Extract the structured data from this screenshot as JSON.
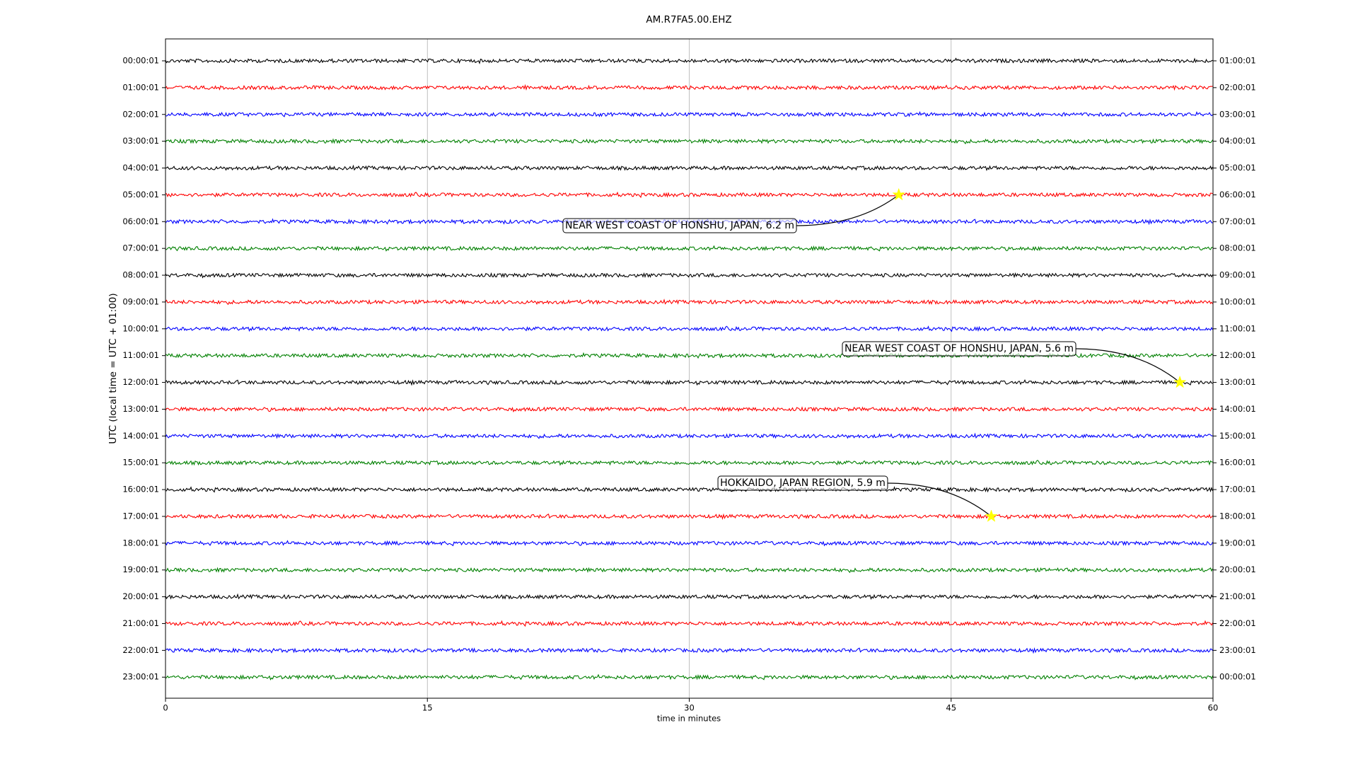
{
  "chart_data": {
    "type": "dayplot",
    "title": "AM.R7FA5.00.EHZ",
    "x_label": "time in minutes",
    "y_label": "UTC (local time = UTC + 01:00)",
    "xlim": [
      0,
      60
    ],
    "xticks": [
      0,
      15,
      30,
      45,
      60
    ],
    "grid": true,
    "rows": [
      {
        "label": "00:00:01",
        "right_label": "01:00:01",
        "color": "#000000"
      },
      {
        "label": "01:00:01",
        "right_label": "02:00:01",
        "color": "#ff0000"
      },
      {
        "label": "02:00:01",
        "right_label": "03:00:01",
        "color": "#0000ff"
      },
      {
        "label": "03:00:01",
        "right_label": "04:00:01",
        "color": "#008000"
      },
      {
        "label": "04:00:01",
        "right_label": "05:00:01",
        "color": "#000000"
      },
      {
        "label": "05:00:01",
        "right_label": "06:00:01",
        "color": "#ff0000",
        "events": [
          {
            "label": "NEAR WEST COAST OF HONSHU, JAPAN, 6.2 m",
            "x": 42
          }
        ]
      },
      {
        "label": "06:00:01",
        "right_label": "07:00:01",
        "color": "#0000ff"
      },
      {
        "label": "07:00:01",
        "right_label": "08:00:01",
        "color": "#008000"
      },
      {
        "label": "08:00:01",
        "right_label": "09:00:01",
        "color": "#000000"
      },
      {
        "label": "09:00:01",
        "right_label": "10:00:01",
        "color": "#ff0000"
      },
      {
        "label": "10:00:01",
        "right_label": "11:00:01",
        "color": "#0000ff"
      },
      {
        "label": "11:00:01",
        "right_label": "12:00:01",
        "color": "#008000"
      },
      {
        "label": "12:00:01",
        "right_label": "13:00:01",
        "color": "#000000",
        "events": [
          {
            "label": "NEAR WEST COAST OF HONSHU, JAPAN, 5.6 m",
            "x": 58.1
          }
        ]
      },
      {
        "label": "13:00:01",
        "right_label": "14:00:01",
        "color": "#ff0000"
      },
      {
        "label": "14:00:01",
        "right_label": "15:00:01",
        "color": "#0000ff"
      },
      {
        "label": "15:00:01",
        "right_label": "16:00:01",
        "color": "#008000"
      },
      {
        "label": "16:00:01",
        "right_label": "17:00:01",
        "color": "#000000"
      },
      {
        "label": "17:00:01",
        "right_label": "18:00:01",
        "color": "#ff0000",
        "events": [
          {
            "label": "HOKKAIDO, JAPAN REGION, 5.9 m",
            "x": 47.3
          }
        ]
      },
      {
        "label": "18:00:01",
        "right_label": "19:00:01",
        "color": "#0000ff"
      },
      {
        "label": "19:00:01",
        "right_label": "20:00:01",
        "color": "#008000"
      },
      {
        "label": "20:00:01",
        "right_label": "21:00:01",
        "color": "#000000"
      },
      {
        "label": "21:00:01",
        "right_label": "22:00:01",
        "color": "#ff0000"
      },
      {
        "label": "22:00:01",
        "right_label": "23:00:01",
        "color": "#0000ff"
      },
      {
        "label": "23:00:01",
        "right_label": "00:00:01",
        "color": "#008000"
      }
    ]
  }
}
